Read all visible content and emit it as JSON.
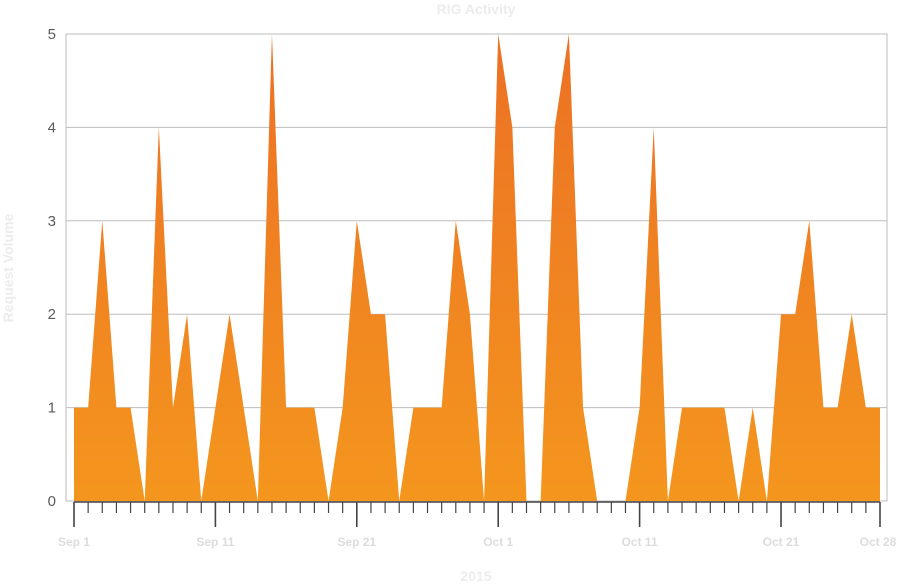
{
  "chart_data": {
    "type": "area",
    "title": "RIG Activity",
    "xlabel": "2015",
    "ylabel": "Request Volume",
    "ylim": [
      0,
      5
    ],
    "yticks": [
      "0",
      "1",
      "2",
      "3",
      "4",
      "5"
    ],
    "x_range": [
      "Sep 1",
      "Oct 28"
    ],
    "xtick_labels": [
      {
        "label": "Sep 1",
        "day": 0
      },
      {
        "label": "Sep 11",
        "day": 10
      },
      {
        "label": "Sep 21",
        "day": 20
      },
      {
        "label": "Oct 1",
        "day": 30
      },
      {
        "label": "Oct 11",
        "day": 40
      },
      {
        "label": "Oct 21",
        "day": 50
      },
      {
        "label": "Oct 28",
        "day": 57
      }
    ],
    "grid": true,
    "colors": {
      "fill_top": "#ec7024",
      "fill_bottom": "#f4961e",
      "grid": "#bdbdbd",
      "axis": "#444444"
    },
    "series": [
      {
        "name": "",
        "x": [
          "Sep 1",
          "Sep 2",
          "Sep 3",
          "Sep 4",
          "Sep 5",
          "Sep 6",
          "Sep 7",
          "Sep 8",
          "Sep 9",
          "Sep 10",
          "Sep 11",
          "Sep 12",
          "Sep 13",
          "Sep 14",
          "Sep 15",
          "Sep 16",
          "Sep 17",
          "Sep 18",
          "Sep 19",
          "Sep 20",
          "Sep 21",
          "Sep 22",
          "Sep 23",
          "Sep 24",
          "Sep 25",
          "Sep 26",
          "Sep 27",
          "Sep 28",
          "Sep 29",
          "Sep 30",
          "Oct 1",
          "Oct 2",
          "Oct 3",
          "Oct 4",
          "Oct 5",
          "Oct 6",
          "Oct 7",
          "Oct 8",
          "Oct 9",
          "Oct 10",
          "Oct 11",
          "Oct 12",
          "Oct 13",
          "Oct 14",
          "Oct 15",
          "Oct 16",
          "Oct 17",
          "Oct 18",
          "Oct 19",
          "Oct 20",
          "Oct 21",
          "Oct 22",
          "Oct 23",
          "Oct 24",
          "Oct 25",
          "Oct 26",
          "Oct 27",
          "Oct 28"
        ],
        "values": [
          1,
          1,
          3,
          1,
          1,
          0,
          4,
          1,
          2,
          0,
          1,
          2,
          1,
          0,
          5,
          1,
          1,
          1,
          0,
          1,
          3,
          2,
          2,
          0,
          1,
          1,
          1,
          3,
          2,
          0,
          5,
          4,
          0,
          0,
          4,
          5,
          1,
          0,
          0,
          0,
          1,
          4,
          0,
          1,
          1,
          1,
          1,
          0,
          1,
          0,
          2,
          2,
          3,
          1,
          1,
          2,
          1,
          1
        ]
      }
    ]
  }
}
